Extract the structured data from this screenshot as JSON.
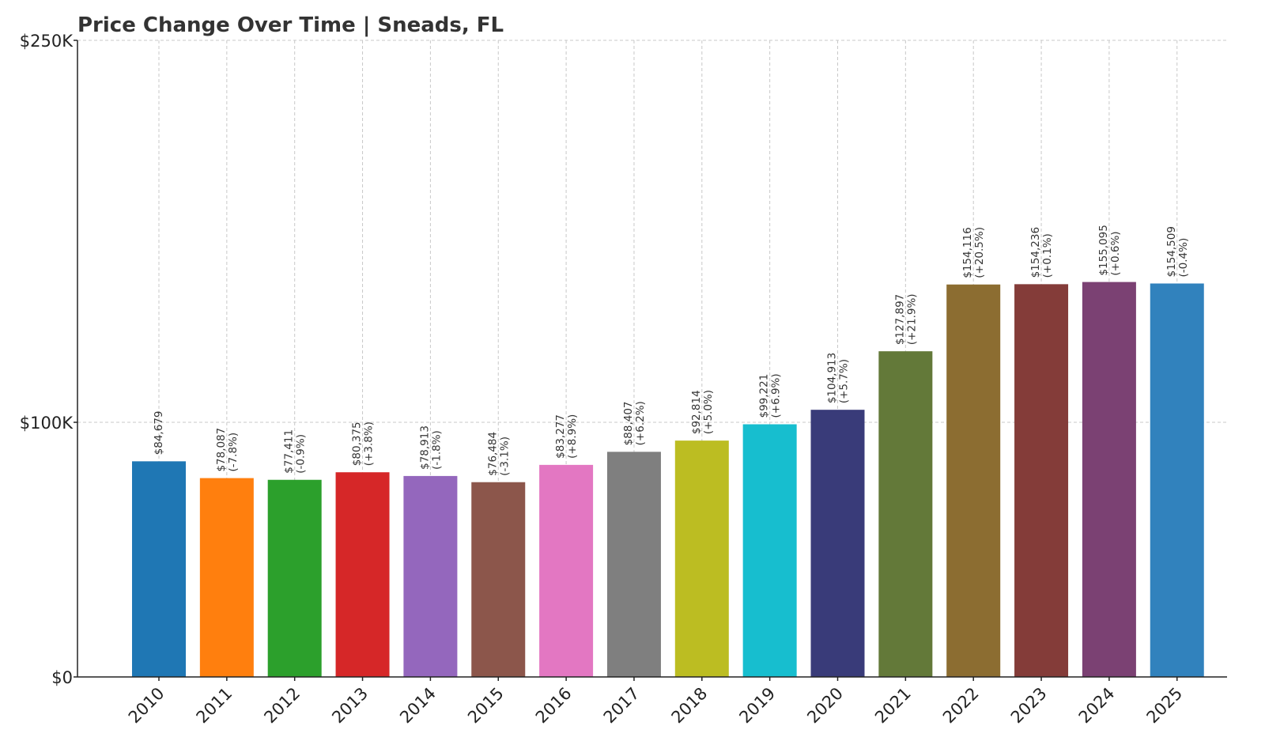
{
  "chart_data": {
    "type": "bar",
    "title": "Price Change Over Time | Sneads, FL",
    "xlabel": "",
    "ylabel": "",
    "ylim": [
      0,
      250000
    ],
    "y_ticks": [
      0,
      100000,
      250000
    ],
    "y_tick_labels": [
      "$0",
      "$100K",
      "$250K"
    ],
    "grid": true,
    "categories": [
      "2010",
      "2011",
      "2012",
      "2013",
      "2014",
      "2015",
      "2016",
      "2017",
      "2018",
      "2019",
      "2020",
      "2021",
      "2022",
      "2023",
      "2024",
      "2025"
    ],
    "values": [
      84679,
      78087,
      77411,
      80375,
      78913,
      76484,
      83277,
      88407,
      92814,
      99221,
      104913,
      127897,
      154116,
      154236,
      155095,
      154509
    ],
    "value_labels": [
      "$84,679",
      "$78,087",
      "$77,411",
      "$80,375",
      "$78,913",
      "$76,484",
      "$83,277",
      "$88,407",
      "$92,814",
      "$99,221",
      "$104,913",
      "$127,897",
      "$154,116",
      "$154,236",
      "$155,095",
      "$154,509"
    ],
    "change_labels": [
      "",
      "(-7.8%)",
      "(-0.9%)",
      "(+3.8%)",
      "(-1.8%)",
      "(-3.1%)",
      "(+8.9%)",
      "(+6.2%)",
      "(+5.0%)",
      "(+6.9%)",
      "(+5.7%)",
      "(+21.9%)",
      "(+20.5%)",
      "(+0.1%)",
      "(+0.6%)",
      "(-0.4%)"
    ],
    "colors": [
      "#1f77b4",
      "#ff7f0e",
      "#2ca02c",
      "#d62728",
      "#9467bd",
      "#8c564b",
      "#e377c2",
      "#7f7f7f",
      "#bcbd22",
      "#17becf",
      "#393b79",
      "#637939",
      "#8c6d31",
      "#843c39",
      "#7b4173",
      "#3182bd"
    ]
  }
}
